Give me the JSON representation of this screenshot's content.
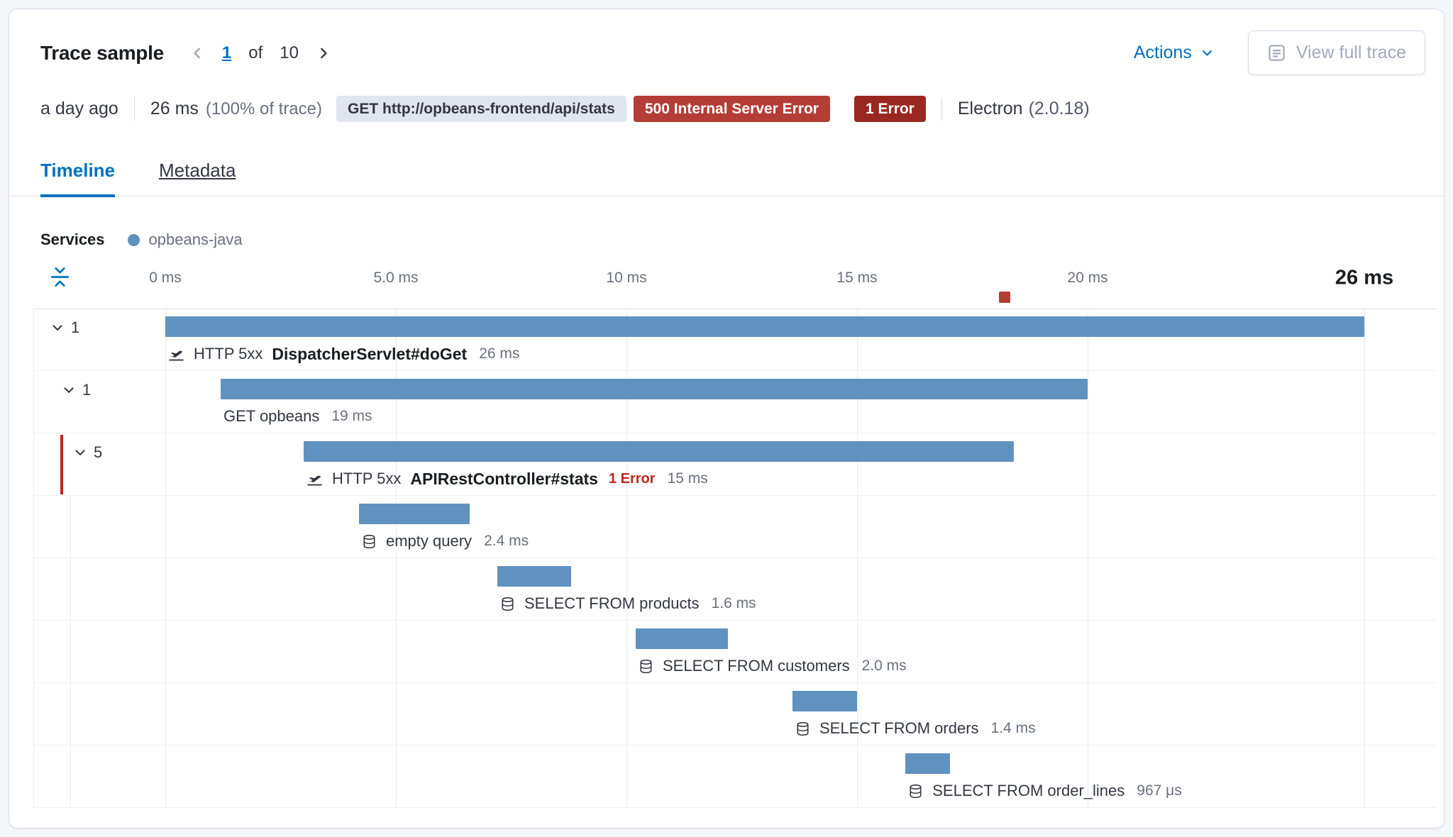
{
  "header": {
    "title": "Trace sample",
    "pagination": {
      "current": "1",
      "of_label": "of",
      "total": "10"
    },
    "actions_label": "Actions",
    "view_full_trace_label": "View full trace"
  },
  "summary": {
    "timestamp": "a day ago",
    "duration": "26 ms",
    "duration_percent": "(100% of trace)",
    "method_url_badge": "GET http://opbeans-frontend/api/stats",
    "status_badge": "500 Internal Server Error",
    "error_count_badge": "1 Error",
    "agent_name": "Electron",
    "agent_version": "(2.0.18)"
  },
  "tabs": [
    {
      "label": "Timeline",
      "active": true
    },
    {
      "label": "Metadata",
      "active": false
    }
  ],
  "legend": {
    "title": "Services",
    "service": "opbeans-java",
    "service_color": "#6092c0"
  },
  "colors": {
    "primary": "#0071c2",
    "bar": "#6092c0",
    "danger_text": "#bd271e",
    "badge_gray_bg": "#e0e5ee",
    "badge_red_bg": "#b43d35",
    "badge_darkred_bg": "#9a2820",
    "error_marker": "#b43d35"
  },
  "chart_data": {
    "type": "waterfall",
    "unit": "ms",
    "total_ms": 26,
    "error_marker_ms": 18.2,
    "bar_color": "#6092c0",
    "ticks": [
      {
        "label": "0 ms",
        "ms": 0
      },
      {
        "label": "5.0 ms",
        "ms": 5
      },
      {
        "label": "10 ms",
        "ms": 10
      },
      {
        "label": "15 ms",
        "ms": 15
      },
      {
        "label": "20 ms",
        "ms": 20
      },
      {
        "label": "26 ms",
        "ms": 26,
        "emphasis": true
      }
    ],
    "items": [
      {
        "depth": 0,
        "toggle_count": "1",
        "icon": "transaction",
        "prefix": "HTTP 5xx",
        "name": "DispatcherServlet#doGet",
        "bold": true,
        "duration_label": "26 ms",
        "start_ms": 0,
        "duration_ms": 26
      },
      {
        "depth": 1,
        "toggle_count": "1",
        "icon": null,
        "prefix": null,
        "name": "GET opbeans",
        "bold": false,
        "duration_label": "19 ms",
        "start_ms": 1.2,
        "duration_ms": 18.8
      },
      {
        "depth": 2,
        "toggle_count": "5",
        "icon": "transaction",
        "prefix": "HTTP 5xx",
        "name": "APIRestController#stats",
        "bold": true,
        "error_label": "1 Error",
        "error_accent": true,
        "duration_label": "15 ms",
        "start_ms": 3.0,
        "duration_ms": 15.4
      },
      {
        "depth": 3,
        "icon": "database",
        "name": "empty query",
        "bold": false,
        "duration_label": "2.4 ms",
        "start_ms": 4.2,
        "duration_ms": 2.4,
        "indent_guide": true
      },
      {
        "depth": 3,
        "icon": "database",
        "name": "SELECT FROM products",
        "bold": false,
        "duration_label": "1.6 ms",
        "start_ms": 7.2,
        "duration_ms": 1.6,
        "indent_guide": true
      },
      {
        "depth": 3,
        "icon": "database",
        "name": "SELECT FROM customers",
        "bold": false,
        "duration_label": "2.0 ms",
        "start_ms": 10.2,
        "duration_ms": 2.0,
        "indent_guide": true
      },
      {
        "depth": 3,
        "icon": "database",
        "name": "SELECT FROM orders",
        "bold": false,
        "duration_label": "1.4 ms",
        "start_ms": 13.6,
        "duration_ms": 1.4,
        "indent_guide": true
      },
      {
        "depth": 3,
        "icon": "database",
        "name": "SELECT FROM order_lines",
        "bold": false,
        "duration_label": "967 μs",
        "start_ms": 16.05,
        "duration_ms": 0.967,
        "indent_guide": true
      }
    ]
  }
}
